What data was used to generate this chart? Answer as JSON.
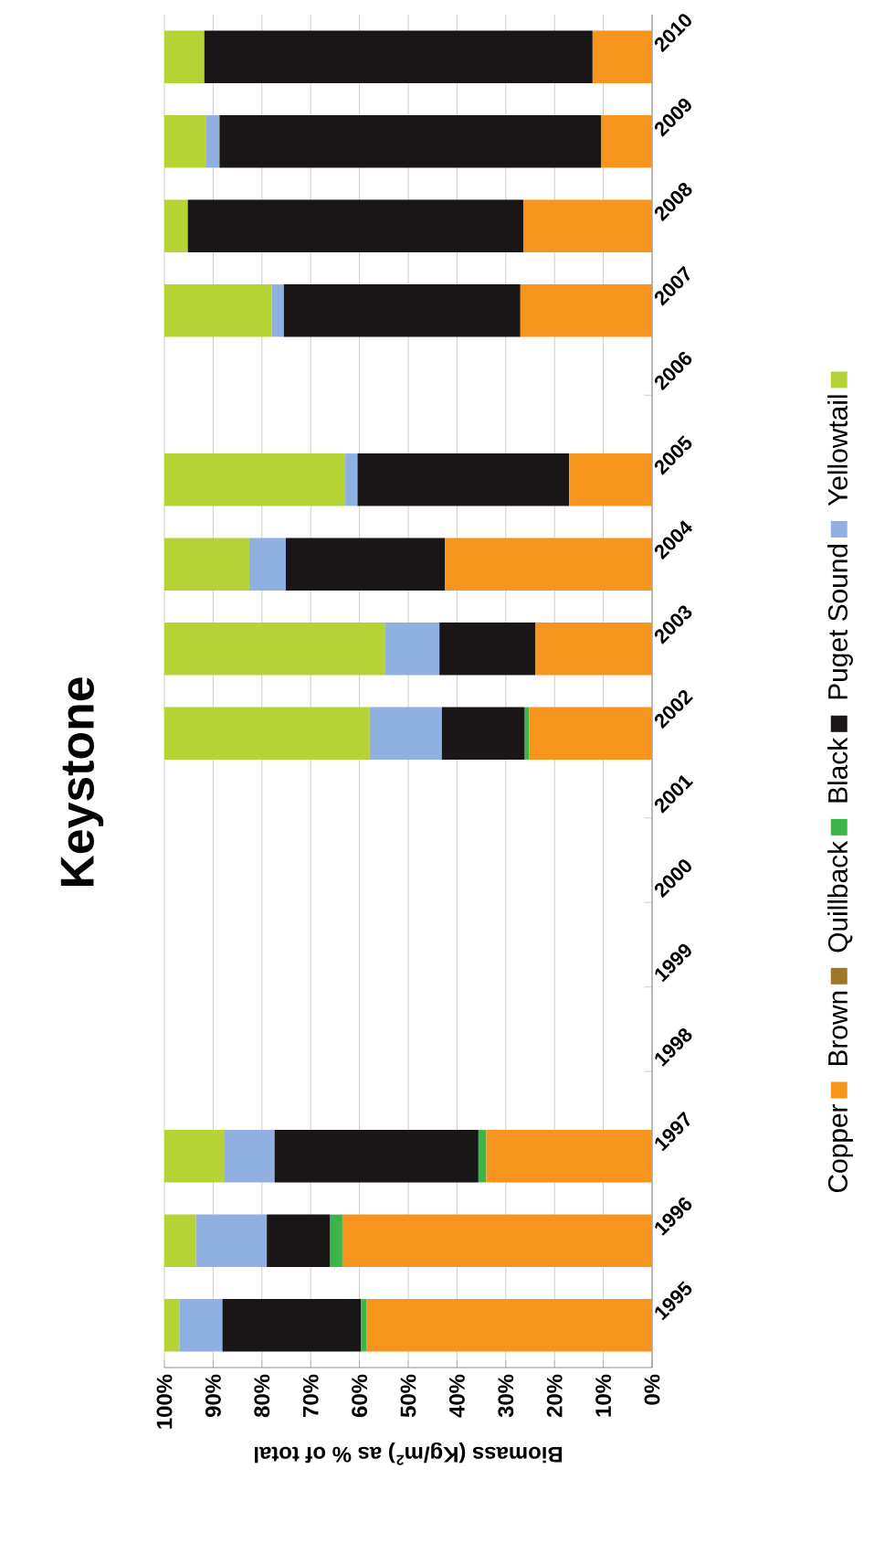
{
  "chart_data": {
    "type": "bar",
    "stacked": true,
    "orientation": "horizontal",
    "title": "Keystone",
    "xlabel": "Biomass (Kg/m$^{2}$) as % of total",
    "categories": [
      "2010",
      "2009",
      "2008",
      "2007",
      "2006",
      "2005",
      "2004",
      "2003",
      "2002",
      "2001",
      "2000",
      "1999",
      "1998",
      "1997",
      "1996",
      "1995"
    ],
    "series": [
      {
        "name": "Copper",
        "color": "#f7941d",
        "values": [
          12.2,
          10.4,
          26.4,
          27.0,
          null,
          17.0,
          42.5,
          23.9,
          25.2,
          null,
          null,
          null,
          null,
          34.0,
          63.5,
          58.5
        ]
      },
      {
        "name": "Brown",
        "color": "#a0762a",
        "values": [
          0,
          0,
          0,
          0,
          null,
          0,
          0,
          0,
          0,
          null,
          null,
          null,
          null,
          0,
          0,
          0
        ]
      },
      {
        "name": "Quillback",
        "color": "#3cb44a",
        "values": [
          0,
          0,
          0,
          0,
          null,
          0,
          0,
          0,
          0.9,
          null,
          null,
          null,
          null,
          1.6,
          2.5,
          1.2
        ]
      },
      {
        "name": "Black",
        "color": "#1a1617",
        "values": [
          79.6,
          78.3,
          68.8,
          48.5,
          null,
          43.4,
          32.6,
          19.7,
          17.0,
          null,
          null,
          null,
          null,
          41.8,
          13.0,
          28.4
        ]
      },
      {
        "name": "Puget Sound",
        "color": "#8fb0e0",
        "values": [
          0,
          2.7,
          0,
          2.5,
          null,
          2.5,
          7.5,
          11.1,
          14.8,
          null,
          null,
          null,
          null,
          10.4,
          14.5,
          8.8
        ]
      },
      {
        "name": "Yellowtail",
        "color": "#b5d334",
        "values": [
          8.2,
          8.6,
          4.8,
          22.0,
          null,
          37.1,
          17.4,
          45.3,
          42.1,
          null,
          null,
          null,
          null,
          12.2,
          6.5,
          3.1
        ]
      }
    ],
    "xlim": [
      100,
      0
    ],
    "xticks": [
      {
        "value": 100,
        "label": "100%"
      },
      {
        "value": 90,
        "label": "90%"
      },
      {
        "value": 80,
        "label": "80%"
      },
      {
        "value": 70,
        "label": "70%"
      },
      {
        "value": 60,
        "label": "60%"
      },
      {
        "value": 50,
        "label": "50%"
      },
      {
        "value": 40,
        "label": "40%"
      },
      {
        "value": 30,
        "label": "30%"
      },
      {
        "value": 20,
        "label": "20%"
      },
      {
        "value": 10,
        "label": "10%"
      },
      {
        "value": 0,
        "label": "0%"
      }
    ],
    "grid": "x",
    "legend": "right"
  }
}
